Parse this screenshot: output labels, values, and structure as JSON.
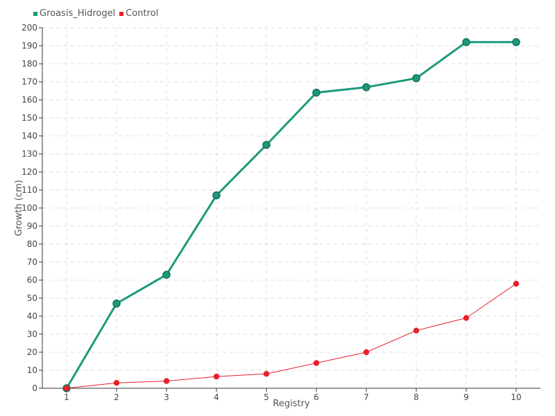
{
  "chart_data": {
    "type": "line",
    "title": "",
    "xlabel": "Registry",
    "ylabel": "Growth (cm)",
    "x": [
      1,
      2,
      3,
      4,
      5,
      6,
      7,
      8,
      9,
      10
    ],
    "ylim": [
      0,
      200
    ],
    "ytick_step": 10,
    "grid": true,
    "legend_position": "top-left",
    "series": [
      {
        "name": "Groasis_Hidrogel",
        "color": "#1a9a7a",
        "values": [
          0,
          47,
          63,
          107,
          135,
          164,
          167,
          172,
          192,
          192
        ]
      },
      {
        "name": "Control",
        "color": "#e8202a",
        "values": [
          0,
          3,
          4,
          6.5,
          8,
          14,
          20,
          32,
          39,
          58
        ]
      }
    ]
  }
}
